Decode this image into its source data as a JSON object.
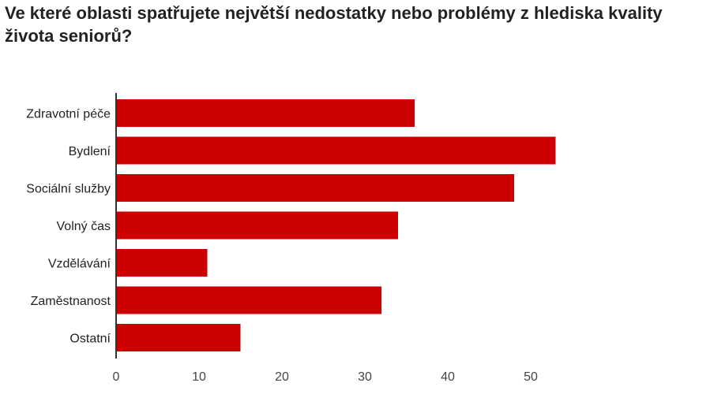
{
  "chart_data": {
    "type": "bar",
    "orientation": "horizontal",
    "title": "Ve které oblasti spatřujete největší nedostatky nebo problémy z hlediska kvality života seniorů?",
    "categories": [
      "Zdravotní péče",
      "Bydlení",
      "Sociální služby",
      "Volný čas",
      "Vzdělávání",
      "Zaměstnanost",
      "Ostatní"
    ],
    "values": [
      36,
      53,
      48,
      34,
      11,
      32,
      15
    ],
    "xlim": [
      0,
      55
    ],
    "xticks": [
      0,
      10,
      20,
      30,
      40,
      50
    ],
    "xlabel": "",
    "ylabel": "",
    "grid": false,
    "bar_color": "#cc0000"
  }
}
